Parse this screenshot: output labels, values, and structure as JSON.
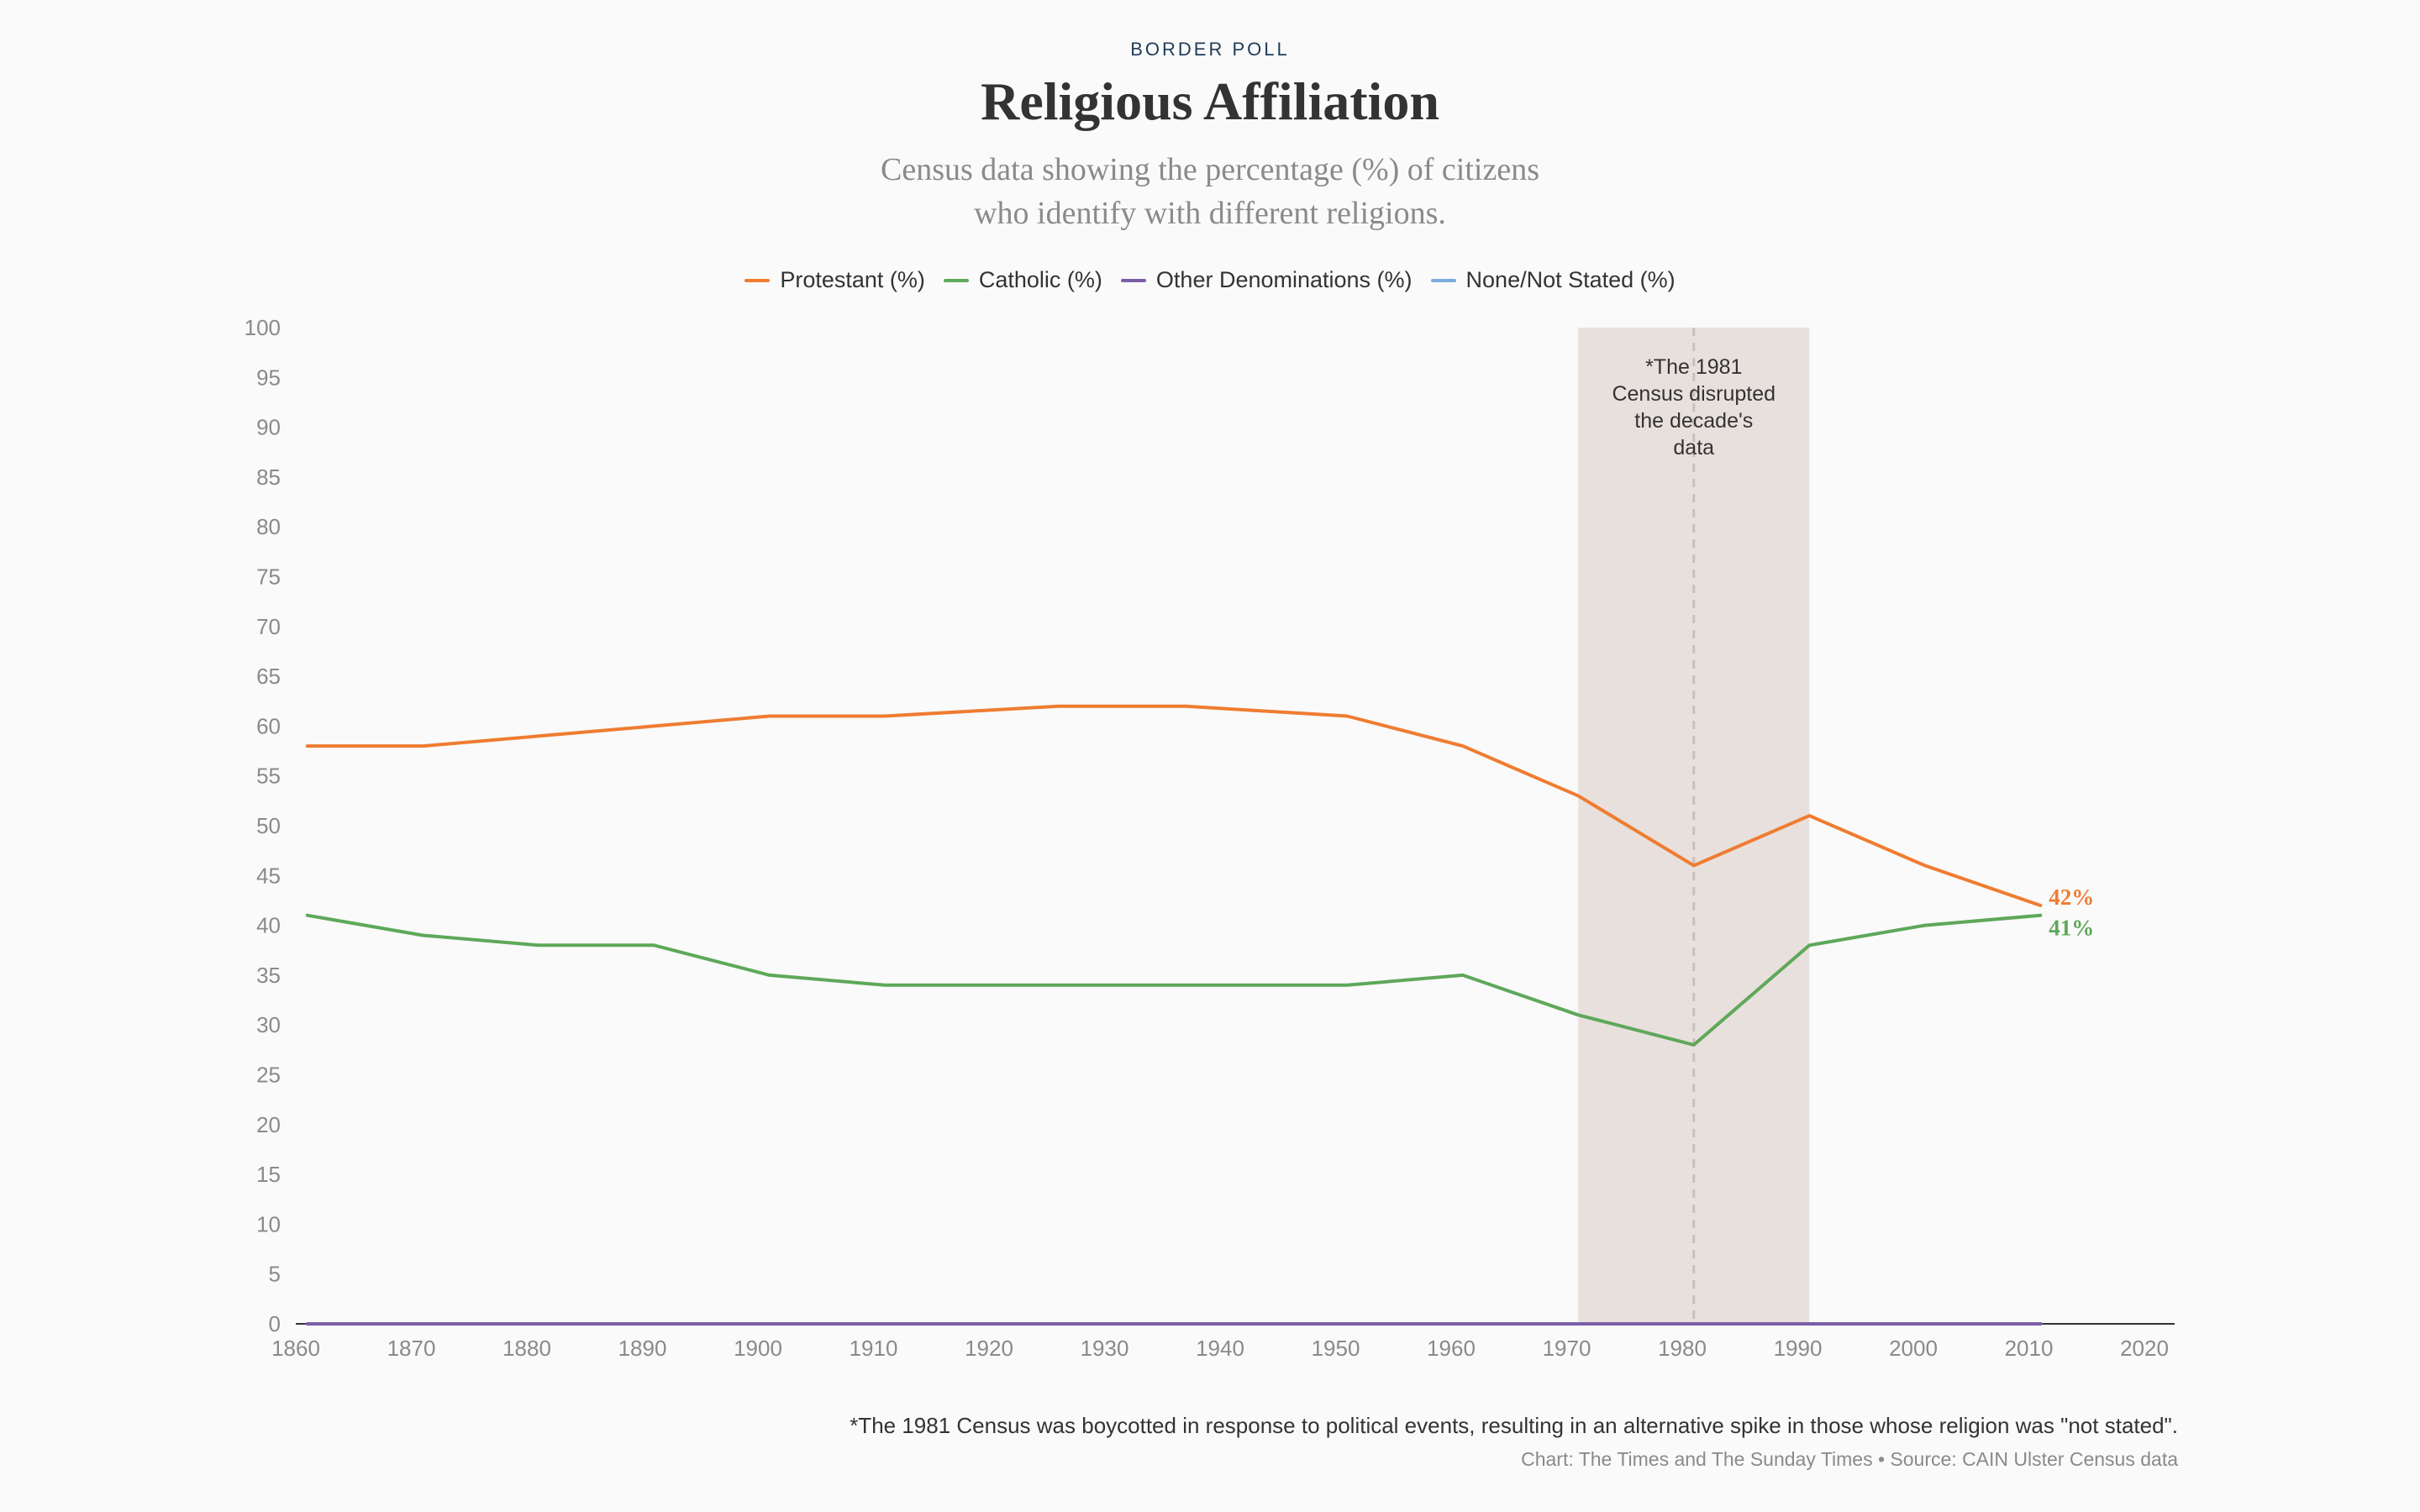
{
  "header": {
    "kicker": "BORDER POLL",
    "title": "Religious Affiliation",
    "subtitle_line1": "Census data showing the percentage (%) of citizens",
    "subtitle_line2": "who identify with different religions."
  },
  "colors": {
    "protestant": "#ef7c31",
    "catholic": "#5ea85a",
    "other": "#7b5ea7",
    "none": "#7aace0",
    "highlight_band": "#e8e0dc",
    "axis": "#333333",
    "tick_text": "#8a8a8a"
  },
  "footer": {
    "footnote": "*The 1981 Census was boycotted in response to political events, resulting in an alternative spike in those whose religion was \"not stated\".",
    "credit": "Chart: The Times and The Sunday Times • Source: CAIN Ulster Census data"
  },
  "chart_data": {
    "type": "line",
    "title": "Religious Affiliation",
    "xlim": [
      1860,
      2020
    ],
    "ylim": [
      0,
      100
    ],
    "x_ticks": [
      1860,
      1870,
      1880,
      1890,
      1900,
      1910,
      1920,
      1930,
      1940,
      1950,
      1960,
      1970,
      1980,
      1990,
      2000,
      2010,
      2020
    ],
    "y_ticks": [
      0,
      5,
      10,
      15,
      20,
      25,
      30,
      35,
      40,
      45,
      50,
      55,
      60,
      65,
      70,
      75,
      80,
      85,
      90,
      95,
      100
    ],
    "grid": false,
    "legend": "top-center",
    "series": [
      {
        "name": "Protestant (%)",
        "key": "protestant",
        "x": [
          1861,
          1871,
          1881,
          1891,
          1901,
          1911,
          1926,
          1937,
          1951,
          1961,
          1971,
          1981,
          1991,
          2001,
          2011
        ],
        "y": [
          58,
          58,
          59,
          60,
          61,
          61,
          62,
          62,
          61,
          58,
          53,
          46,
          51,
          46,
          42
        ],
        "end_label": "42%"
      },
      {
        "name": "Catholic (%)",
        "key": "catholic",
        "x": [
          1861,
          1871,
          1881,
          1891,
          1901,
          1911,
          1926,
          1937,
          1951,
          1961,
          1971,
          1981,
          1991,
          2001,
          2011
        ],
        "y": [
          41,
          39,
          38,
          38,
          35,
          34,
          34,
          34,
          34,
          35,
          31,
          28,
          38,
          40,
          41
        ],
        "end_label": "41%"
      },
      {
        "name": "Other Denominations (%)",
        "key": "other",
        "x": [
          1861,
          1871,
          1881,
          1891,
          1901,
          1911,
          1926,
          1937,
          1951,
          1961,
          1971,
          1981,
          1991,
          2001,
          2011
        ],
        "y": [
          0,
          0,
          0,
          0,
          0,
          0,
          0,
          0,
          0,
          0,
          0,
          0,
          0,
          0,
          0
        ]
      },
      {
        "name": "None/Not Stated (%)",
        "key": "none",
        "x": [
          1861,
          1871,
          1881,
          1891,
          1901,
          1911,
          1926,
          1937,
          1951,
          1961,
          1971,
          1981,
          1991,
          2001,
          2011
        ],
        "y": [
          0,
          0,
          0,
          0,
          0,
          0,
          0,
          0,
          0,
          0,
          0,
          0,
          0,
          0,
          0
        ]
      }
    ],
    "highlight": {
      "x_start": 1971,
      "x_end": 1991,
      "marker_x": 1981,
      "note_lines": [
        "*The 1981",
        "Census disrupted",
        "the decade's",
        "data"
      ]
    }
  }
}
